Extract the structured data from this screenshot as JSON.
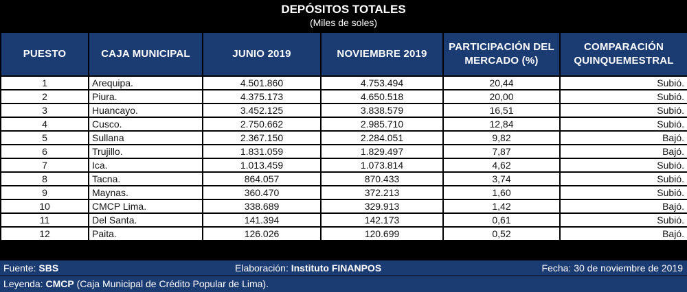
{
  "header": {
    "title": "DEPÓSITOS TOTALES",
    "subtitle": "(Miles de soles)"
  },
  "columns": [
    "PUESTO",
    "CAJA MUNICIPAL",
    "JUNIO 2019",
    "NOVIEMBRE 2019",
    "PARTICIPACIÓN DEL MERCADO (%)",
    "COMPARACIÓN QUINQUEMESTRAL"
  ],
  "rows": [
    {
      "puesto": "1",
      "caja": "Arequipa.",
      "junio": "4.501.860",
      "noviembre": "4.753.494",
      "participacion": "20,44",
      "comparacion": "Subió."
    },
    {
      "puesto": "2",
      "caja": "Piura.",
      "junio": "4.375.173",
      "noviembre": "4.650.518",
      "participacion": "20,00",
      "comparacion": "Subió."
    },
    {
      "puesto": "3",
      "caja": "Huancayo.",
      "junio": "3.452.125",
      "noviembre": "3.838.579",
      "participacion": "16,51",
      "comparacion": "Subió."
    },
    {
      "puesto": "4",
      "caja": "Cusco.",
      "junio": "2.750.662",
      "noviembre": "2.985.710",
      "participacion": "12,84",
      "comparacion": "Subió."
    },
    {
      "puesto": "5",
      "caja": "Sullana",
      "junio": "2.367.150",
      "noviembre": "2.284.051",
      "participacion": "9,82",
      "comparacion": "Bajó."
    },
    {
      "puesto": "6",
      "caja": "Trujillo.",
      "junio": "1.831.059",
      "noviembre": "1.829.497",
      "participacion": "7,87",
      "comparacion": "Bajó."
    },
    {
      "puesto": "7",
      "caja": "Ica.",
      "junio": "1.013.459",
      "noviembre": "1.073.814",
      "participacion": "4,62",
      "comparacion": "Subió."
    },
    {
      "puesto": "8",
      "caja": "Tacna.",
      "junio": "864.057",
      "noviembre": "870.433",
      "participacion": "3,74",
      "comparacion": "Subió."
    },
    {
      "puesto": "9",
      "caja": "Maynas.",
      "junio": "360.470",
      "noviembre": "372.213",
      "participacion": "1,60",
      "comparacion": "Subió."
    },
    {
      "puesto": "10",
      "caja": "CMCP Lima.",
      "junio": "338.689",
      "noviembre": "329.913",
      "participacion": "1,42",
      "comparacion": "Bajó."
    },
    {
      "puesto": "11",
      "caja": "Del Santa.",
      "junio": "141.394",
      "noviembre": "142.173",
      "participacion": "0,61",
      "comparacion": "Subió."
    },
    {
      "puesto": "12",
      "caja": "Paita.",
      "junio": "126.026",
      "noviembre": "120.699",
      "participacion": "0,52",
      "comparacion": "Bajó."
    }
  ],
  "footer": {
    "fuente_label": "Fuente: ",
    "fuente_value": "SBS",
    "elaboracion_label": "Elaboración: ",
    "elaboracion_value": "Instituto FINANPOS",
    "fecha": "Fecha: 30 de noviembre de 2019",
    "leyenda_label": "Leyenda: ",
    "leyenda_bold": "CMCP",
    "leyenda_text": " (Caja Municipal de Crédito Popular de Lima)."
  },
  "colors": {
    "header_blue": "#1b3b73",
    "background": "#000000",
    "cell": "#ffffff"
  }
}
